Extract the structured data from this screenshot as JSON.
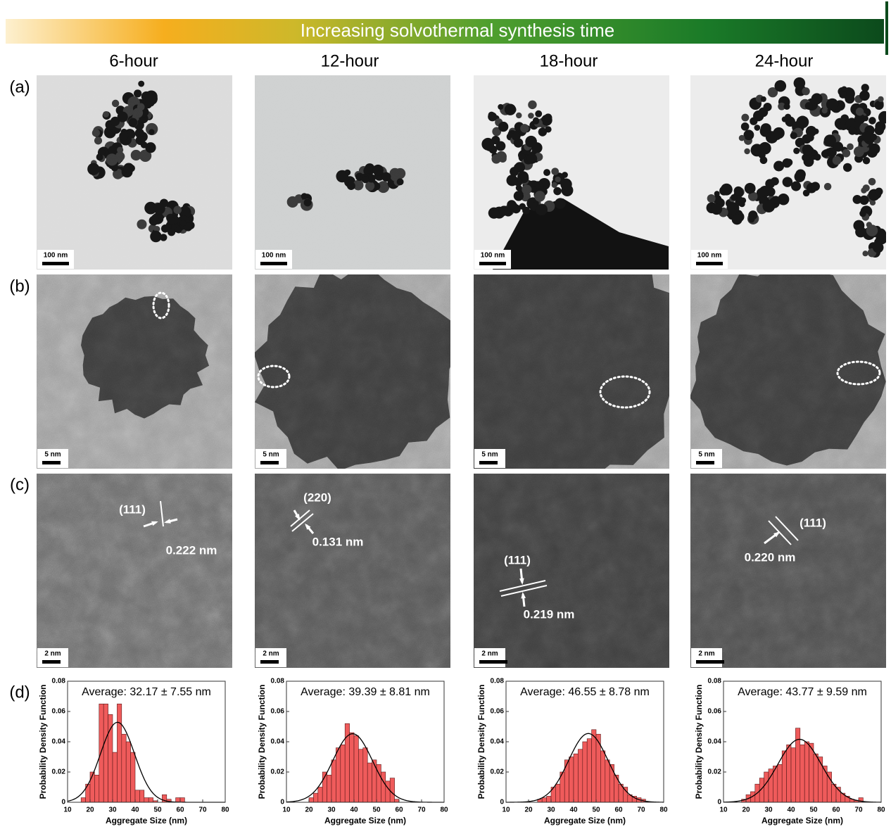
{
  "figure": {
    "banner": "Increasing solvothermal synthesis time",
    "columns": [
      "6-hour",
      "12-hour",
      "18-hour",
      "24-hour"
    ],
    "row_labels": [
      "(a)",
      "(b)",
      "(c)",
      "(d)"
    ],
    "panels": [
      {
        "scale_a": "100 nm",
        "scale_b": "5 nm",
        "scale_c": "2 nm",
        "plane": "(111)",
        "spacing": "0.222 nm"
      },
      {
        "scale_a": "100 nm",
        "scale_b": "5 nm",
        "scale_c": "2 nm",
        "plane": "(220)",
        "spacing": "0.131 nm"
      },
      {
        "scale_a": "100 nm",
        "scale_b": "5 nm",
        "scale_c": "2 nm",
        "plane": "(111)",
        "spacing": "0.219 nm"
      },
      {
        "scale_a": "100 nm",
        "scale_b": "5 nm",
        "scale_c": "2 nm",
        "plane": "(111)",
        "spacing": "0.220 nm"
      }
    ]
  },
  "chart_data": [
    {
      "type": "histogram",
      "annotation": "Average: 32.17 ± 7.55 nm",
      "mean": 32.17,
      "std": 7.55,
      "xlabel": "Aggregate Size (nm)",
      "ylabel": "Probability Density Function",
      "bins": [
        16,
        18,
        20,
        22,
        24,
        26,
        28,
        30,
        32,
        34,
        36,
        38,
        40,
        42,
        44,
        46,
        48,
        50,
        52,
        54,
        56,
        58,
        60,
        62
      ],
      "values": [
        0.003,
        0.012,
        0.02,
        0.018,
        0.065,
        0.065,
        0.058,
        0.033,
        0.065,
        0.045,
        0.04,
        0.033,
        0.008,
        0.008,
        0.003,
        0.003,
        0.001,
        0,
        0.005,
        0.002,
        0,
        0.003,
        0.003
      ],
      "color": "#ef5b5b",
      "curve_color": "#000000",
      "xlim": [
        10,
        80
      ],
      "ylim": [
        0,
        0.08
      ],
      "xticks": [
        10,
        20,
        30,
        40,
        50,
        60,
        70,
        80
      ],
      "yticks": [
        0,
        0.02,
        0.04,
        0.06,
        0.08
      ]
    },
    {
      "type": "histogram",
      "annotation": "Average: 39.39 ± 8.81 nm",
      "mean": 39.39,
      "std": 8.81,
      "xlabel": "Aggregate Size (nm)",
      "ylabel": "Probability Density Function",
      "bins": [
        20,
        22,
        24,
        26,
        28,
        30,
        32,
        34,
        36,
        38,
        40,
        42,
        44,
        46,
        48,
        50,
        52,
        54,
        56,
        58,
        60
      ],
      "values": [
        0.003,
        0.006,
        0.01,
        0.02,
        0.018,
        0.028,
        0.036,
        0.038,
        0.052,
        0.046,
        0.044,
        0.035,
        0.036,
        0.026,
        0.028,
        0.025,
        0.02,
        0.014,
        0.016,
        0.002
      ],
      "color": "#ef5b5b",
      "curve_color": "#000000",
      "xlim": [
        10,
        80
      ],
      "ylim": [
        0,
        0.08
      ],
      "xticks": [
        10,
        20,
        30,
        40,
        50,
        60,
        70,
        80
      ],
      "yticks": [
        0,
        0.02,
        0.04,
        0.06,
        0.08
      ]
    },
    {
      "type": "histogram",
      "annotation": "Average: 46.55 ± 8.78 nm",
      "mean": 46.55,
      "std": 8.78,
      "xlabel": "Aggregate Size (nm)",
      "ylabel": "Probability Density Function",
      "bins": [
        24,
        26,
        28,
        30,
        32,
        34,
        36,
        38,
        40,
        42,
        44,
        46,
        48,
        50,
        52,
        54,
        56,
        58,
        60,
        62,
        64,
        66,
        68,
        70,
        72
      ],
      "values": [
        0.002,
        0.003,
        0.004,
        0.01,
        0.012,
        0.02,
        0.028,
        0.03,
        0.032,
        0.035,
        0.04,
        0.042,
        0.048,
        0.045,
        0.034,
        0.028,
        0.025,
        0.018,
        0.012,
        0.01,
        0.005,
        0.004,
        0.003,
        0.002
      ],
      "color": "#ef5b5b",
      "curve_color": "#000000",
      "xlim": [
        10,
        80
      ],
      "ylim": [
        0,
        0.08
      ],
      "xticks": [
        10,
        20,
        30,
        40,
        50,
        60,
        70,
        80
      ],
      "yticks": [
        0,
        0.02,
        0.04,
        0.06,
        0.08
      ]
    },
    {
      "type": "histogram",
      "annotation": "Average: 43.77 ± 9.59 nm",
      "mean": 43.77,
      "std": 9.59,
      "xlabel": "Aggregate Size (nm)",
      "ylabel": "Probability Density Function",
      "bins": [
        18,
        20,
        22,
        24,
        26,
        28,
        30,
        32,
        34,
        36,
        38,
        40,
        42,
        44,
        46,
        48,
        50,
        52,
        54,
        56,
        58,
        60,
        62,
        64,
        66,
        68,
        70,
        72
      ],
      "values": [
        0.002,
        0.005,
        0.007,
        0.012,
        0.016,
        0.02,
        0.022,
        0.024,
        0.025,
        0.034,
        0.038,
        0.036,
        0.049,
        0.038,
        0.04,
        0.039,
        0.032,
        0.03,
        0.024,
        0.02,
        0.012,
        0.01,
        0.006,
        0.004,
        0.002,
        0.001,
        0.003
      ],
      "color": "#ef5b5b",
      "curve_color": "#000000",
      "xlim": [
        10,
        80
      ],
      "ylim": [
        0,
        0.08
      ],
      "xticks": [
        10,
        20,
        30,
        40,
        50,
        60,
        70,
        80
      ],
      "yticks": [
        0,
        0.02,
        0.04,
        0.06,
        0.08
      ]
    }
  ]
}
